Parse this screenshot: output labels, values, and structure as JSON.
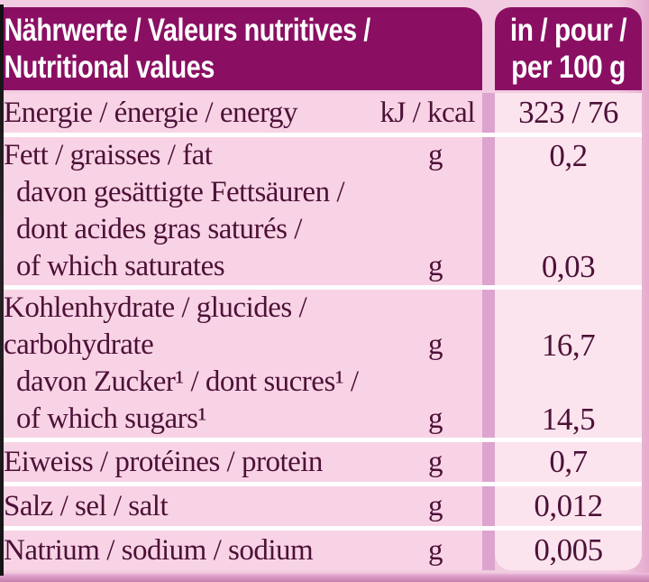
{
  "theme": {
    "header_bg": "#8a0f63",
    "header_text": "#ffffff",
    "label_column_bg": "#f8d3e5",
    "value_column_bg": "#fce4ef",
    "page_bg": "#f1cce0",
    "text_color": "#4d1137",
    "gutter_color": "#dca4cf",
    "row_separator": "#ffffff",
    "bottom_band": "#c67ead"
  },
  "header": {
    "title_line1": "Nährwerte / Valeurs nutritives /",
    "title_line2": "Nutritional values",
    "unit_line1": "in / pour /",
    "unit_line2": "per 100 g"
  },
  "table": {
    "rows": [
      {
        "name": "energy",
        "lines": [
          {
            "text": "Energie / énergie / energy",
            "unit": "kJ / kcal",
            "value": "323 / 76"
          }
        ]
      },
      {
        "name": "fat",
        "lines": [
          {
            "text": "Fett / graisses / fat",
            "unit": "g",
            "value": "0,2"
          },
          {
            "text": "davon gesättigte Fettsäuren /"
          },
          {
            "text": "dont acides gras saturés /"
          },
          {
            "text": "of which saturates",
            "unit": "g",
            "value": "0,03"
          }
        ]
      },
      {
        "name": "carbohydrate",
        "lines": [
          {
            "text": "Kohlenhydrate / glucides /"
          },
          {
            "text": "carbohydrate",
            "unit": "g",
            "value": "16,7"
          },
          {
            "text": "davon Zucker¹ / dont sucres¹ /"
          },
          {
            "text": "of which sugars¹",
            "unit": "g",
            "value": "14,5"
          }
        ]
      },
      {
        "name": "protein",
        "lines": [
          {
            "text": "Eiweiss / protéines / protein",
            "unit": "g",
            "value": "0,7"
          }
        ]
      },
      {
        "name": "salt",
        "lines": [
          {
            "text": "Salz / sel / salt",
            "unit": "g",
            "value": "0,012"
          }
        ]
      },
      {
        "name": "sodium",
        "lines": [
          {
            "text": "Natrium / sodium / sodium",
            "unit": "g",
            "value": "0,005"
          }
        ]
      }
    ]
  }
}
